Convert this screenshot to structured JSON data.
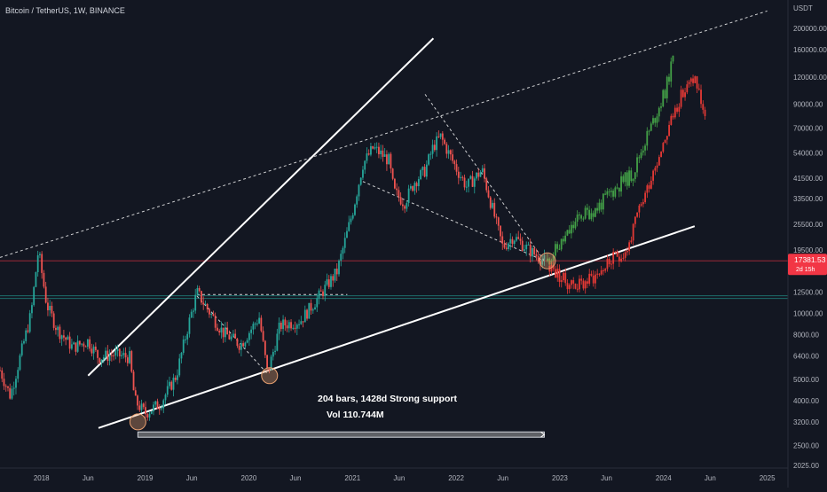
{
  "header": {
    "symbol_title": "Bitcoin / TetherUS, 1W, BINANCE",
    "currency": "USDT"
  },
  "price_tag": {
    "price": "17381.53",
    "countdown": "2d 15h",
    "color": "#f23645"
  },
  "annotations": {
    "range_label": "204 bars, 1428d Strong support",
    "volume_label": "Vol 110.744M"
  },
  "colors": {
    "background": "#131722",
    "up": "#26a69a",
    "down": "#ef5350",
    "projection_up": "#43a047",
    "projection_down": "#e53935",
    "trendline": "#ffffff",
    "marker": "#e8a070"
  },
  "chart_data": {
    "type": "candlestick",
    "title": "Bitcoin / TetherUS, 1W, BINANCE",
    "y_scale": "log",
    "ylim": [
      2025,
      250000
    ],
    "x_range": [
      2017.6,
      2025.2
    ],
    "grid": false,
    "x_ticks": [
      {
        "x": 2018.0,
        "label": "2018"
      },
      {
        "x": 2018.45,
        "label": "Jun"
      },
      {
        "x": 2019.0,
        "label": "2019"
      },
      {
        "x": 2019.45,
        "label": "Jun"
      },
      {
        "x": 2020.0,
        "label": "2020"
      },
      {
        "x": 2020.45,
        "label": "Jun"
      },
      {
        "x": 2021.0,
        "label": "2021"
      },
      {
        "x": 2021.45,
        "label": "Jun"
      },
      {
        "x": 2022.0,
        "label": "2022"
      },
      {
        "x": 2022.45,
        "label": "Jun"
      },
      {
        "x": 2023.0,
        "label": "2023"
      },
      {
        "x": 2023.45,
        "label": "Jun"
      },
      {
        "x": 2024.0,
        "label": "2024"
      },
      {
        "x": 2024.45,
        "label": "Jun"
      },
      {
        "x": 2025.0,
        "label": "2025"
      }
    ],
    "y_ticks": [
      {
        "value": 200000,
        "label": "200000.00"
      },
      {
        "value": 160000,
        "label": "160000.00"
      },
      {
        "value": 120000,
        "label": "120000.00"
      },
      {
        "value": 90000,
        "label": "90000.00"
      },
      {
        "value": 70000,
        "label": "70000.00"
      },
      {
        "value": 54000,
        "label": "54000.00"
      },
      {
        "value": 41500,
        "label": "41500.00"
      },
      {
        "value": 33500,
        "label": "33500.00"
      },
      {
        "value": 25500,
        "label": "25500.00"
      },
      {
        "value": 19500,
        "label": "19500.00"
      },
      {
        "value": 12500,
        "label": "12500.00"
      },
      {
        "value": 10000,
        "label": "10000.00"
      },
      {
        "value": 8000,
        "label": "8000.00"
      },
      {
        "value": 6400,
        "label": "6400.00"
      },
      {
        "value": 5000,
        "label": "5000.00"
      },
      {
        "value": 4000,
        "label": "4000.00"
      },
      {
        "value": 3200,
        "label": "3200.00"
      },
      {
        "value": 2500,
        "label": "2500.00"
      },
      {
        "value": 2025,
        "label": "2025.00"
      }
    ],
    "price_anchors": [
      [
        2017.6,
        5500
      ],
      [
        2017.7,
        4200
      ],
      [
        2017.8,
        6500
      ],
      [
        2017.9,
        10000
      ],
      [
        2017.97,
        19500
      ],
      [
        2018.05,
        11000
      ],
      [
        2018.15,
        8500
      ],
      [
        2018.3,
        7000
      ],
      [
        2018.45,
        7500
      ],
      [
        2018.55,
        6300
      ],
      [
        2018.7,
        6500
      ],
      [
        2018.85,
        6300
      ],
      [
        2018.9,
        4000
      ],
      [
        2019.0,
        3500
      ],
      [
        2019.15,
        3900
      ],
      [
        2019.3,
        5200
      ],
      [
        2019.42,
        9000
      ],
      [
        2019.5,
        12500
      ],
      [
        2019.6,
        10500
      ],
      [
        2019.75,
        8200
      ],
      [
        2019.92,
        7200
      ],
      [
        2020.1,
        9600
      ],
      [
        2020.18,
        5300
      ],
      [
        2020.3,
        8800
      ],
      [
        2020.5,
        9300
      ],
      [
        2020.65,
        11500
      ],
      [
        2020.85,
        15500
      ],
      [
        2021.0,
        29000
      ],
      [
        2021.1,
        48000
      ],
      [
        2021.2,
        57000
      ],
      [
        2021.35,
        50000
      ],
      [
        2021.4,
        36000
      ],
      [
        2021.5,
        32000
      ],
      [
        2021.6,
        40000
      ],
      [
        2021.7,
        45000
      ],
      [
        2021.78,
        58000
      ],
      [
        2021.85,
        64000
      ],
      [
        2022.0,
        46000
      ],
      [
        2022.1,
        38000
      ],
      [
        2022.25,
        45000
      ],
      [
        2022.35,
        30000
      ],
      [
        2022.45,
        20000
      ],
      [
        2022.55,
        22500
      ],
      [
        2022.7,
        19500
      ],
      [
        2022.85,
        17381
      ]
    ],
    "projection_green": [
      [
        2022.88,
        17381
      ],
      [
        2023.05,
        22000
      ],
      [
        2023.2,
        28000
      ],
      [
        2023.35,
        30000
      ],
      [
        2023.5,
        36000
      ],
      [
        2023.6,
        40000
      ],
      [
        2023.7,
        43000
      ],
      [
        2023.8,
        58000
      ],
      [
        2023.9,
        75000
      ],
      [
        2024.02,
        105000
      ],
      [
        2024.1,
        150000
      ]
    ],
    "projection_red": [
      [
        2022.9,
        16500
      ],
      [
        2023.05,
        14000
      ],
      [
        2023.2,
        13500
      ],
      [
        2023.35,
        15000
      ],
      [
        2023.5,
        17500
      ],
      [
        2023.65,
        19500
      ],
      [
        2023.75,
        28000
      ],
      [
        2023.9,
        45000
      ],
      [
        2024.02,
        65000
      ],
      [
        2024.15,
        95000
      ],
      [
        2024.3,
        120000
      ],
      [
        2024.4,
        80000
      ]
    ],
    "horizontal_levels": [
      {
        "value": 17381.53,
        "style": "solid",
        "color": "#f23645"
      },
      {
        "value": 11700,
        "style": "double",
        "color": "#26a69a"
      }
    ],
    "trendlines": [
      {
        "p1": [
          2018.45,
          5200
        ],
        "p2": [
          2021.78,
          180000
        ],
        "style": "solid"
      },
      {
        "p1": [
          2018.55,
          3000
        ],
        "p2": [
          2024.3,
          25000
        ],
        "style": "solid"
      },
      {
        "p1": [
          2017.6,
          18000
        ],
        "p2": [
          2025.0,
          240000
        ],
        "style": "dashed"
      },
      {
        "p1": [
          2019.5,
          12000
        ],
        "p2": [
          2020.18,
          5300
        ],
        "style": "dashed"
      },
      {
        "p1": [
          2019.5,
          12200
        ],
        "p2": [
          2020.95,
          12200
        ],
        "style": "dashed"
      },
      {
        "p1": [
          2021.1,
          40000
        ],
        "p2": [
          2022.85,
          17381
        ],
        "style": "dashed"
      },
      {
        "p1": [
          2021.7,
          100000
        ],
        "p2": [
          2022.85,
          17381
        ],
        "style": "dashed"
      }
    ],
    "circle_markers": [
      {
        "x": 2018.93,
        "value": 3200
      },
      {
        "x": 2020.2,
        "value": 5200
      },
      {
        "x": 2022.88,
        "value": 17381
      }
    ],
    "range_bar": {
      "x1": 2018.93,
      "x2": 2022.85,
      "value": 2800
    }
  }
}
